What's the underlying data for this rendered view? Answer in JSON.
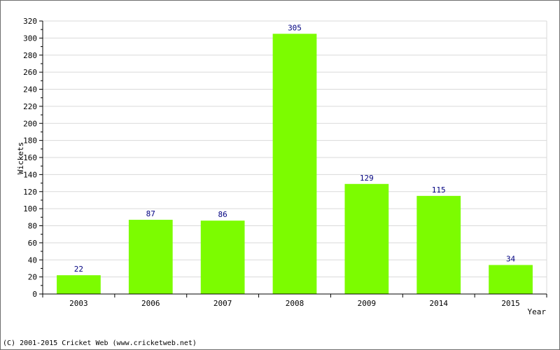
{
  "chart_data": {
    "type": "bar",
    "title": "",
    "xlabel": "Year",
    "ylabel": "Wickets",
    "categories": [
      "2003",
      "2006",
      "2007",
      "2008",
      "2009",
      "2014",
      "2015"
    ],
    "values": [
      22,
      87,
      86,
      305,
      129,
      115,
      34
    ],
    "data_labels": [
      "22",
      "87",
      "86",
      "305",
      "129",
      "115",
      "34"
    ],
    "ylim": [
      0,
      320
    ],
    "yticks": [
      "0",
      "20",
      "40",
      "60",
      "80",
      "100",
      "120",
      "140",
      "160",
      "180",
      "200",
      "220",
      "240",
      "260",
      "280",
      "300",
      "320"
    ],
    "grid": true,
    "legend": "none",
    "colors": {
      "bar": "#7cfc00",
      "data_label": "#000080",
      "grid": "#d9d9d9",
      "axis": "#000000"
    }
  },
  "footer": {
    "copyright": "(C) 2001-2015 Cricket Web (www.cricketweb.net)"
  }
}
